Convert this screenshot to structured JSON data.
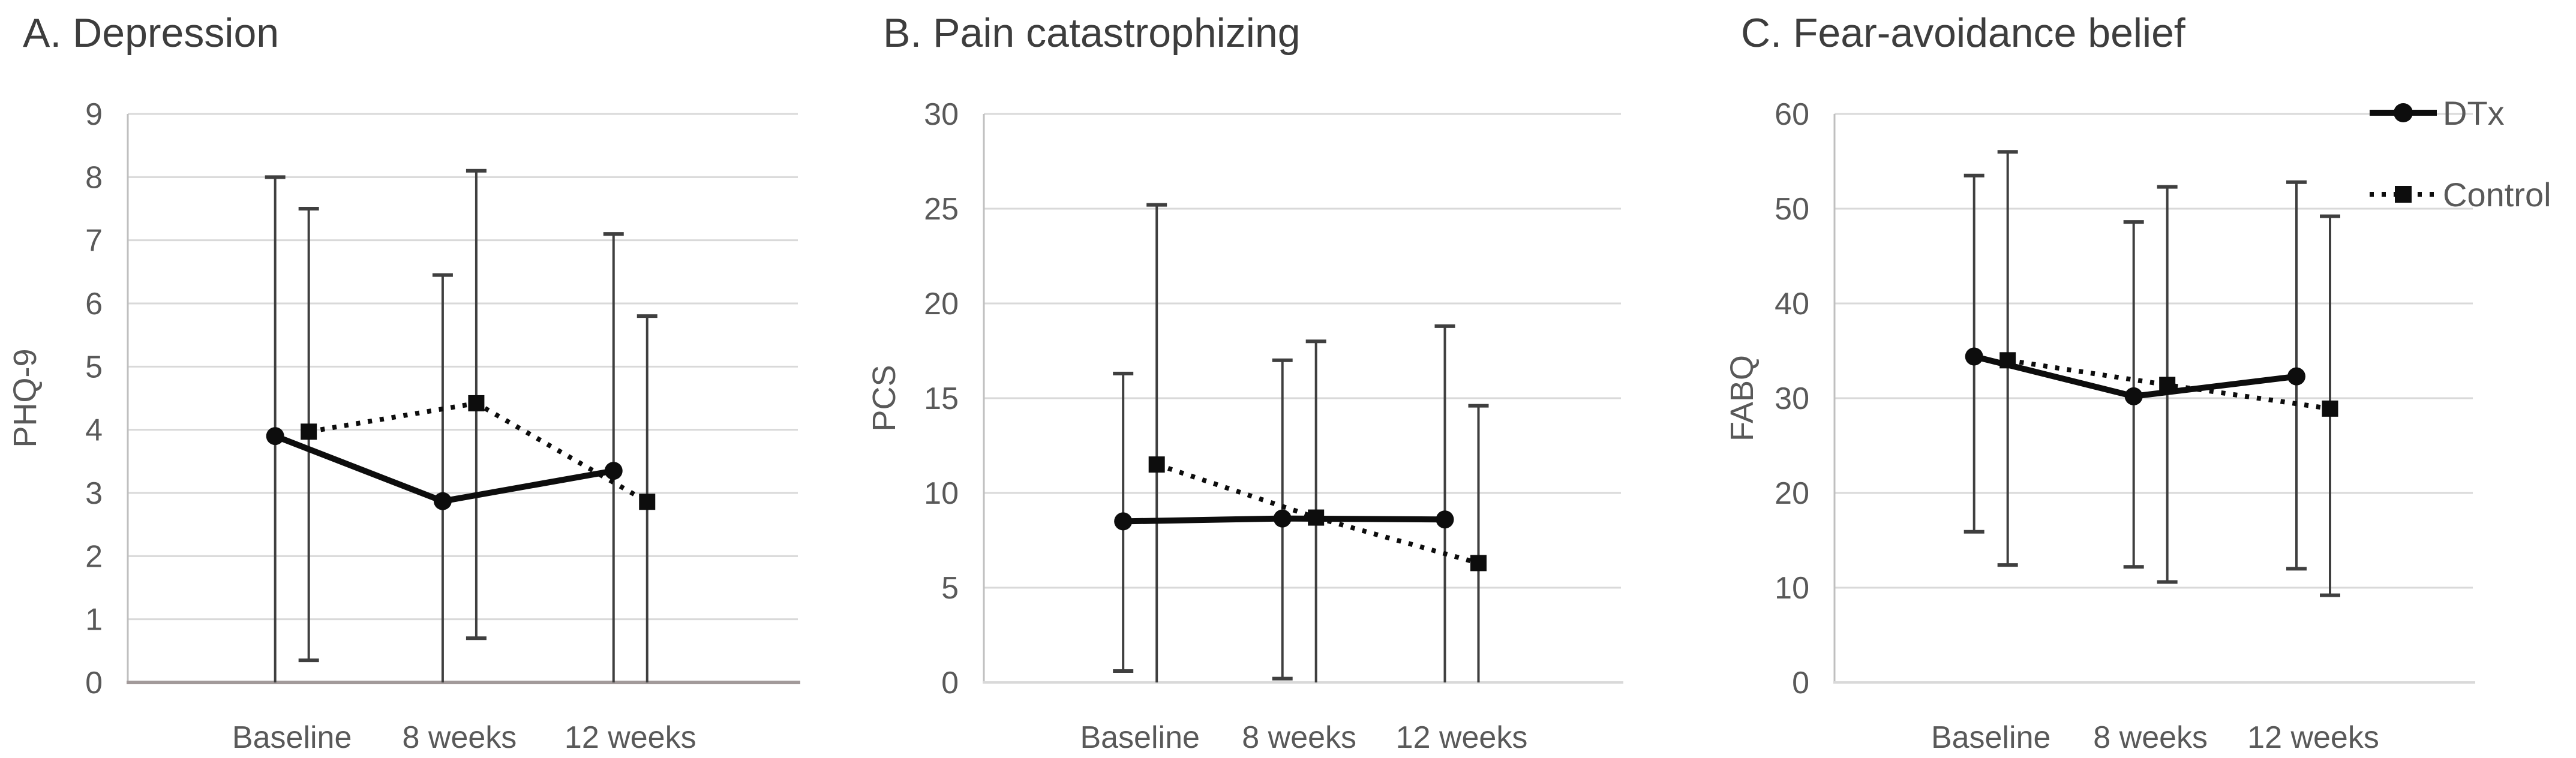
{
  "figure": {
    "background": "#ffffff"
  },
  "colors": {
    "series": "#0d0d0d",
    "error_bar": "#3f3f3f",
    "gridline": "#d9d9d9",
    "axis_line": "#bfbfbf",
    "axis_line_dark": "#a29a9a",
    "tick_label": "#595959",
    "title": "#3d3d3d",
    "legend_text": "#595959"
  },
  "legend": {
    "position": "top-right",
    "items": [
      {
        "label": "DTx",
        "line": "solid",
        "marker": "circle"
      },
      {
        "label": "Control",
        "line": "dotted",
        "marker": "square"
      }
    ]
  },
  "chart_data": [
    {
      "type": "line",
      "title": "A. Depression",
      "ylabel": "PHQ-9",
      "xlabel": "",
      "categories": [
        "Baseline",
        "8 weeks",
        "12 weeks"
      ],
      "ylim": [
        0,
        9
      ],
      "ytick_step": 1,
      "grid": "horizontal",
      "error_bars": true,
      "series": [
        {
          "name": "DTx",
          "marker": "circle",
          "line": "solid",
          "values": [
            3.9,
            2.87,
            3.35
          ],
          "error_high": [
            8.0,
            6.45,
            7.1
          ],
          "error_low": [
            -0.2,
            -0.5,
            -0.4
          ]
        },
        {
          "name": "Control",
          "marker": "square",
          "line": "dotted",
          "values": [
            3.97,
            4.42,
            2.86
          ],
          "error_high": [
            7.5,
            8.1,
            5.8
          ],
          "error_low": [
            0.35,
            0.7,
            -0.1
          ]
        }
      ]
    },
    {
      "type": "line",
      "title": "B. Pain catastrophizing",
      "ylabel": "PCS",
      "xlabel": "",
      "categories": [
        "Baseline",
        "8 weeks",
        "12 weeks"
      ],
      "ylim": [
        0,
        30
      ],
      "ytick_step": 5,
      "grid": "horizontal",
      "error_bars": true,
      "series": [
        {
          "name": "DTx",
          "marker": "circle",
          "line": "solid",
          "values": [
            8.5,
            8.65,
            8.6
          ],
          "error_high": [
            16.3,
            17.0,
            18.8
          ],
          "error_low": [
            0.6,
            0.2,
            -1.5
          ]
        },
        {
          "name": "Control",
          "marker": "square",
          "line": "dotted",
          "values": [
            11.5,
            8.7,
            6.3
          ],
          "error_high": [
            25.2,
            18.0,
            14.6
          ],
          "error_low": [
            -2.2,
            -0.5,
            -2.1
          ]
        }
      ]
    },
    {
      "type": "line",
      "title": "C. Fear-avoidance belief",
      "ylabel": "FABQ",
      "xlabel": "",
      "categories": [
        "Baseline",
        "8 weeks",
        "12 weeks"
      ],
      "ylim": [
        0,
        60
      ],
      "ytick_step": 10,
      "grid": "horizontal",
      "error_bars": true,
      "series": [
        {
          "name": "DTx",
          "marker": "circle",
          "line": "solid",
          "values": [
            34.4,
            30.2,
            32.3
          ],
          "error_high": [
            53.5,
            48.6,
            52.8
          ],
          "error_low": [
            15.9,
            12.2,
            12.0
          ]
        },
        {
          "name": "Control",
          "marker": "square",
          "line": "dotted",
          "values": [
            34.0,
            31.4,
            28.9
          ],
          "error_high": [
            56.0,
            52.3,
            49.2
          ],
          "error_low": [
            12.4,
            10.6,
            9.2
          ]
        }
      ]
    }
  ]
}
